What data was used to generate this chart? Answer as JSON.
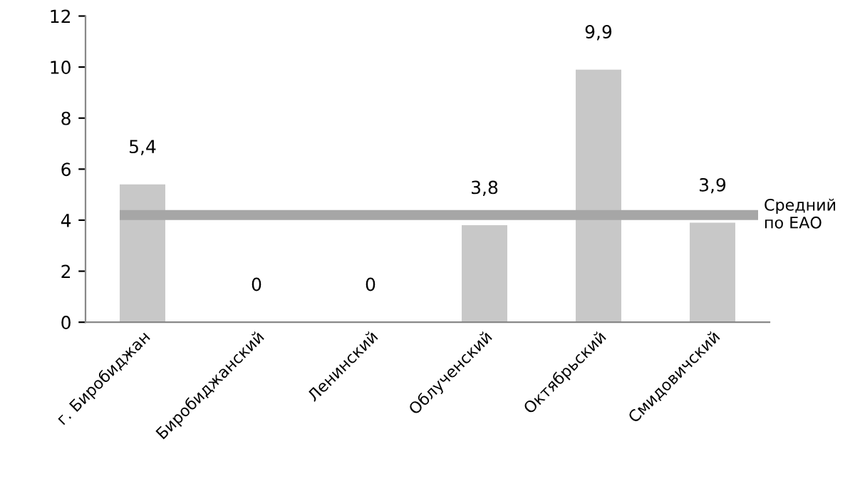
{
  "chart_data": {
    "type": "bar",
    "categories": [
      "г. Биробиджан",
      "Биробиджанский",
      "Ленинский",
      "Облученский",
      "Октябрьский",
      "Смидовичский"
    ],
    "values": [
      5.4,
      0,
      0,
      3.8,
      9.9,
      3.9
    ],
    "value_labels": [
      "5,4",
      "0",
      "0",
      "3,8",
      "9,9",
      "3,9"
    ],
    "color": "#c8c8c8",
    "ylim": [
      0,
      12
    ],
    "yticks": [
      0,
      2,
      4,
      6,
      8,
      10,
      12
    ],
    "grid": false,
    "legend": false,
    "ref_lines": [
      {
        "axis": "y",
        "value": 4.2,
        "label": "Средний\nпо ЕАО",
        "color": "#a6a6a6"
      }
    ]
  }
}
